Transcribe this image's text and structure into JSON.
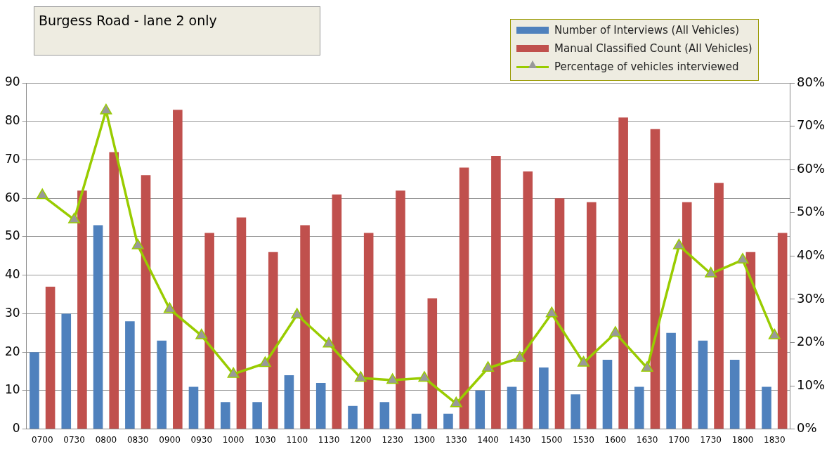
{
  "chart_data": {
    "type": "bar",
    "title": "Burgess Road - lane 2 only",
    "categories": [
      "0700",
      "0730",
      "0800",
      "0830",
      "0900",
      "0930",
      "1000",
      "1030",
      "1100",
      "1130",
      "1200",
      "1230",
      "1300",
      "1330",
      "1400",
      "1430",
      "1500",
      "1530",
      "1600",
      "1630",
      "1700",
      "1730",
      "1800",
      "1830"
    ],
    "series": [
      {
        "name": "Number of Interviews (All Vehicles)",
        "color": "#4f81bd",
        "values": [
          20,
          30,
          53,
          28,
          23,
          11,
          7,
          7,
          14,
          12,
          6,
          7,
          4,
          4,
          10,
          11,
          16,
          9,
          18,
          11,
          25,
          23,
          18,
          11
        ]
      },
      {
        "name": "Manual Classified Count (All Vehicles)",
        "color": "#c0504d",
        "values": [
          37,
          62,
          72,
          66,
          83,
          51,
          55,
          46,
          53,
          61,
          51,
          62,
          34,
          68,
          71,
          67,
          60,
          59,
          81,
          78,
          59,
          64,
          46,
          51
        ]
      },
      {
        "name": "Percentage of vehicles interviewed",
        "type": "line",
        "axis": "y2",
        "color": "#99cc00",
        "marker": "triangle",
        "values": [
          54,
          48.4,
          73.6,
          42.4,
          27.7,
          21.6,
          12.7,
          15.2,
          26.4,
          19.7,
          11.8,
          11.3,
          11.8,
          5.9,
          14.1,
          16.4,
          26.7,
          15.3,
          22.2,
          14.1,
          42.4,
          35.9,
          39.1,
          21.6
        ]
      }
    ],
    "ylim": [
      0,
      90
    ],
    "yticks": [
      0,
      10,
      20,
      30,
      40,
      50,
      60,
      70,
      80,
      90
    ],
    "y2lim": [
      0,
      80
    ],
    "y2ticks": [
      {
        "value": 0,
        "label": "0%"
      },
      {
        "value": 10,
        "label": "10%"
      },
      {
        "value": 20,
        "label": "20%"
      },
      {
        "value": 30,
        "label": "30%"
      },
      {
        "value": 40,
        "label": "40%"
      },
      {
        "value": 50,
        "label": "50%"
      },
      {
        "value": 60,
        "label": "60%"
      },
      {
        "value": 70,
        "label": "70%"
      },
      {
        "value": 80,
        "label": "80%"
      }
    ],
    "grid": "y",
    "legend": "top right"
  }
}
